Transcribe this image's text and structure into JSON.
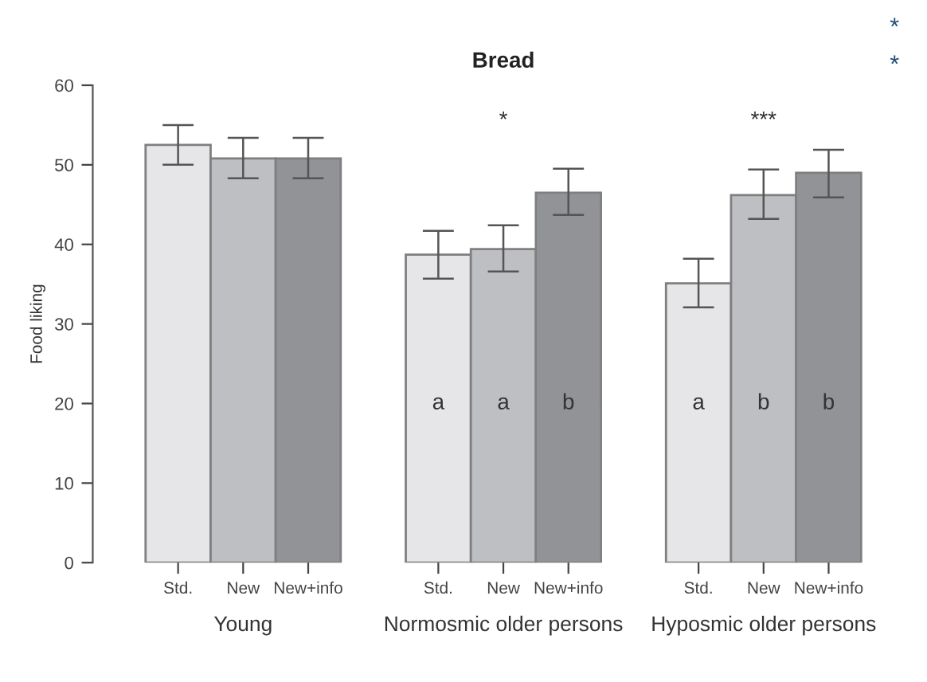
{
  "chart_data": {
    "type": "bar",
    "title": "Bread",
    "ylabel": "Food liking",
    "categories": [
      "Std.",
      "New",
      "New+info",
      null,
      "Std.",
      "New",
      "New+info",
      null,
      "Std.",
      "New",
      "New+info"
    ],
    "values": [
      52.5,
      50.8,
      50.8,
      null,
      38.7,
      39.4,
      46.5,
      null,
      35.1,
      46.2,
      49.0
    ],
    "colors": [
      "#e6e6e8",
      "#bebfc2",
      "#929396",
      null,
      "#e6e6e8",
      "#bebfc2",
      "#929396",
      null,
      "#e6e6e8",
      "#bebfc2",
      "#929396"
    ],
    "errors": [
      [
        50.0,
        55.0
      ],
      [
        48.3,
        53.4
      ],
      [
        48.3,
        53.4
      ],
      null,
      [
        35.7,
        41.7
      ],
      [
        36.6,
        42.4
      ],
      [
        43.7,
        49.5
      ],
      null,
      [
        32.1,
        38.2
      ],
      [
        43.2,
        49.4
      ],
      [
        45.9,
        51.9
      ]
    ],
    "value_labels": [
      null,
      null,
      null,
      null,
      "a",
      "a",
      "b",
      null,
      "a",
      "b",
      "b"
    ],
    "annotations": [
      "Young",
      "Normosmic older persons",
      "Hyposmic older persons",
      "*",
      "***",
      "*",
      "*"
    ],
    "ylim": [
      0,
      60
    ],
    "yticks": [
      0,
      10,
      20,
      30,
      40,
      50,
      60
    ],
    "grid": false,
    "legend": false
  }
}
